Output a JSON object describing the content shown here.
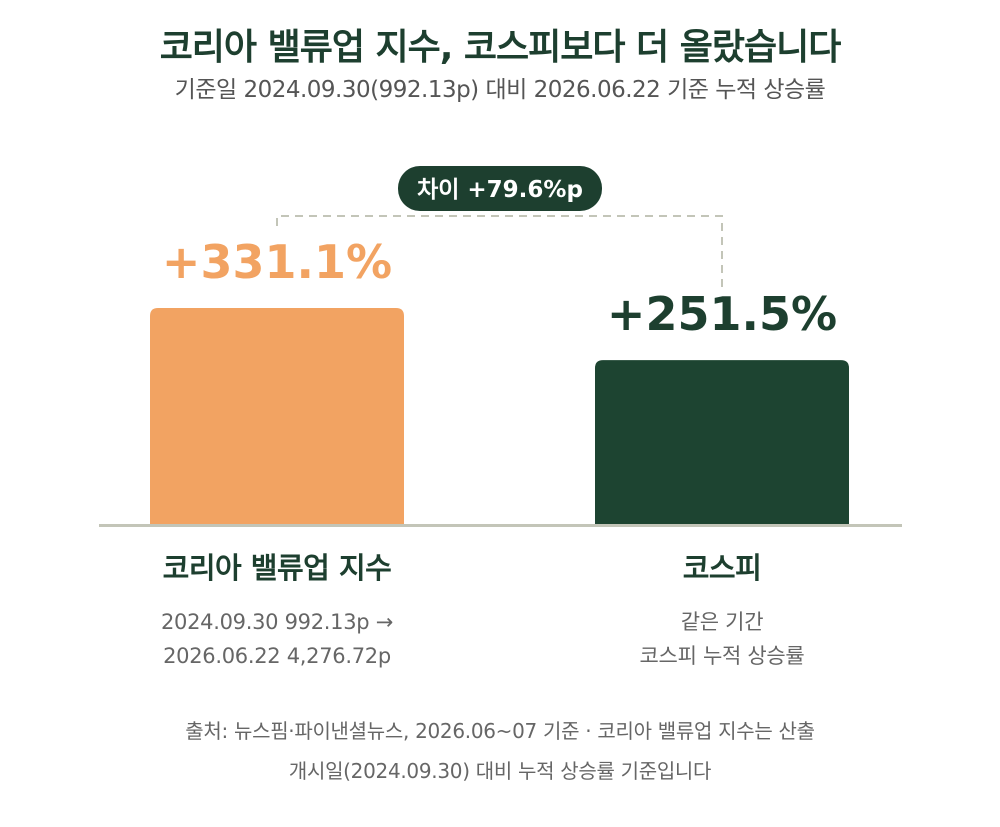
{
  "title": "코리아 밸류업 지수, 코스피보다 더 올랐습니다",
  "subtitle": "기준일 2024.09.30(992.13p) 대비 2026.06.22 기준 누적 상승률",
  "chart_data": {
    "type": "bar",
    "categories": [
      "코리아 밸류업 지수",
      "코스피"
    ],
    "values": [
      331.1,
      251.5
    ],
    "value_labels": [
      "+331.1%",
      "+251.5%"
    ],
    "unit": "%",
    "ylim": [
      0,
      331.1
    ],
    "colors": [
      "#f2a362",
      "#1d4431"
    ],
    "value_label_colors": [
      "#f2a362",
      "#1d3f2f"
    ],
    "difference_label": "차이 +79.6%p",
    "category_notes": [
      [
        "2024.09.30 992.13p →",
        "2026.06.22 4,276.72p"
      ],
      [
        "같은 기간",
        "코스피 누적 상승률"
      ]
    ],
    "grid": false,
    "legend": "none"
  },
  "source_lines": [
    "출처: 뉴스핌·파이낸셜뉴스, 2026.06~07 기준 · 코리아 밸류업 지수는 산출",
    "개시일(2024.09.30) 대비 누적 상승률 기준입니다"
  ]
}
